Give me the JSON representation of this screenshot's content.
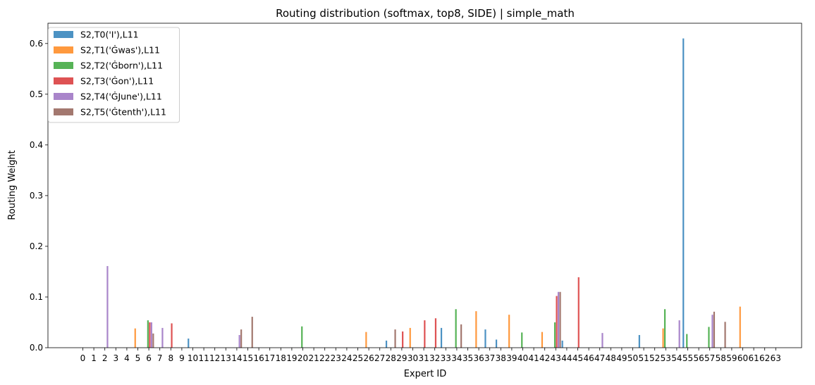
{
  "chart_data": {
    "type": "bar",
    "title": "Routing distribution (softmax, top8, SIDE) | simple_math",
    "xlabel": "Expert ID",
    "ylabel": "Routing Weight",
    "ylim": [
      0,
      0.64
    ],
    "yticks": [
      "0.0",
      "0.1",
      "0.2",
      "0.3",
      "0.4",
      "0.5",
      "0.6"
    ],
    "ytick_values": [
      0,
      0.1,
      0.2,
      0.3,
      0.4,
      0.5,
      0.6
    ],
    "categories": [
      "0",
      "1",
      "2",
      "3",
      "4",
      "5",
      "6",
      "7",
      "8",
      "9",
      "10",
      "11",
      "12",
      "13",
      "14",
      "15",
      "16",
      "17",
      "18",
      "19",
      "20",
      "21",
      "22",
      "23",
      "24",
      "25",
      "26",
      "27",
      "28",
      "29",
      "30",
      "31",
      "32",
      "33",
      "34",
      "35",
      "36",
      "37",
      "38",
      "39",
      "40",
      "41",
      "42",
      "43",
      "44",
      "45",
      "46",
      "47",
      "48",
      "49",
      "50",
      "51",
      "52",
      "53",
      "54",
      "55",
      "56",
      "57",
      "58",
      "59",
      "60",
      "61",
      "62",
      "63"
    ],
    "legend_position": "top-left",
    "grid": false,
    "series": [
      {
        "name": "S2,T0('I'),L11",
        "color": "#1f77b4",
        "values": [
          0,
          0,
          0,
          0,
          0,
          0,
          0,
          0,
          0,
          0,
          0.018,
          0,
          0,
          0,
          0,
          0,
          0,
          0,
          0,
          0,
          0,
          0,
          0,
          0,
          0,
          0,
          0,
          0,
          0.014,
          0,
          0,
          0,
          0,
          0.039,
          0,
          0,
          0,
          0.036,
          0.016,
          0,
          0,
          0,
          0,
          0,
          0.014,
          0,
          0,
          0,
          0,
          0,
          0,
          0.025,
          0,
          0,
          0,
          0.61,
          0,
          0,
          0,
          0,
          0,
          0,
          0,
          0
        ]
      },
      {
        "name": "S2,T1('Ġwas'),L11",
        "color": "#ff7f0e",
        "values": [
          0,
          0,
          0,
          0,
          0,
          0.038,
          0,
          0,
          0,
          0,
          0,
          0,
          0,
          0,
          0,
          0,
          0,
          0,
          0,
          0,
          0,
          0,
          0,
          0,
          0,
          0,
          0.031,
          0,
          0,
          0,
          0.039,
          0,
          0,
          0,
          0,
          0,
          0.072,
          0,
          0,
          0.065,
          0,
          0,
          0.031,
          0,
          0,
          0,
          0,
          0,
          0,
          0,
          0,
          0,
          0,
          0.038,
          0,
          0,
          0,
          0,
          0,
          0,
          0.081,
          0,
          0,
          0
        ]
      },
      {
        "name": "S2,T2('Ġborn'),L11",
        "color": "#2ca02c",
        "values": [
          0,
          0,
          0,
          0,
          0,
          0,
          0.054,
          0,
          0,
          0,
          0,
          0,
          0,
          0,
          0,
          0,
          0,
          0,
          0,
          0,
          0.042,
          0,
          0,
          0,
          0,
          0,
          0,
          0,
          0,
          0,
          0,
          0,
          0,
          0,
          0.076,
          0,
          0,
          0,
          0,
          0,
          0.03,
          0,
          0,
          0.05,
          0,
          0,
          0,
          0,
          0,
          0,
          0,
          0,
          0,
          0.076,
          0,
          0.027,
          0,
          0.041,
          0,
          0,
          0,
          0,
          0,
          0
        ]
      },
      {
        "name": "S2,T3('Ġon'),L11",
        "color": "#d62728",
        "values": [
          0,
          0,
          0,
          0,
          0,
          0,
          0.05,
          0,
          0.048,
          0,
          0,
          0,
          0,
          0,
          0,
          0,
          0,
          0,
          0,
          0,
          0,
          0,
          0,
          0,
          0,
          0,
          0,
          0,
          0,
          0.032,
          0,
          0.054,
          0.058,
          0,
          0,
          0,
          0,
          0,
          0,
          0,
          0,
          0,
          0,
          0.102,
          0,
          0.139,
          0,
          0,
          0,
          0,
          0,
          0,
          0,
          0,
          0,
          0,
          0,
          0,
          0,
          0,
          0,
          0,
          0,
          0
        ]
      },
      {
        "name": "S2,T4('ĠJune'),L11",
        "color": "#9467bd",
        "values": [
          0,
          0,
          0.161,
          0,
          0,
          0,
          0.05,
          0.039,
          0,
          0,
          0,
          0,
          0,
          0,
          0.025,
          0,
          0,
          0,
          0,
          0,
          0,
          0,
          0,
          0,
          0,
          0,
          0,
          0,
          0,
          0,
          0,
          0,
          0,
          0,
          0,
          0,
          0,
          0,
          0,
          0,
          0,
          0,
          0,
          0.11,
          0,
          0,
          0,
          0.029,
          0,
          0,
          0,
          0,
          0,
          0,
          0.054,
          0,
          0,
          0.065,
          0,
          0,
          0,
          0,
          0,
          0
        ]
      },
      {
        "name": "S2,T5('Ġtenth'),L11",
        "color": "#8c564b",
        "values": [
          0,
          0,
          0,
          0,
          0,
          0,
          0.028,
          0,
          0,
          0,
          0,
          0,
          0,
          0,
          0.036,
          0.061,
          0,
          0,
          0,
          0,
          0,
          0,
          0,
          0,
          0,
          0,
          0,
          0,
          0.036,
          0,
          0,
          0,
          0,
          0,
          0.046,
          0,
          0,
          0,
          0,
          0,
          0,
          0,
          0,
          0.11,
          0,
          0,
          0,
          0,
          0,
          0,
          0,
          0,
          0,
          0,
          0,
          0,
          0,
          0.071,
          0.051,
          0,
          0,
          0,
          0,
          0
        ]
      }
    ]
  }
}
